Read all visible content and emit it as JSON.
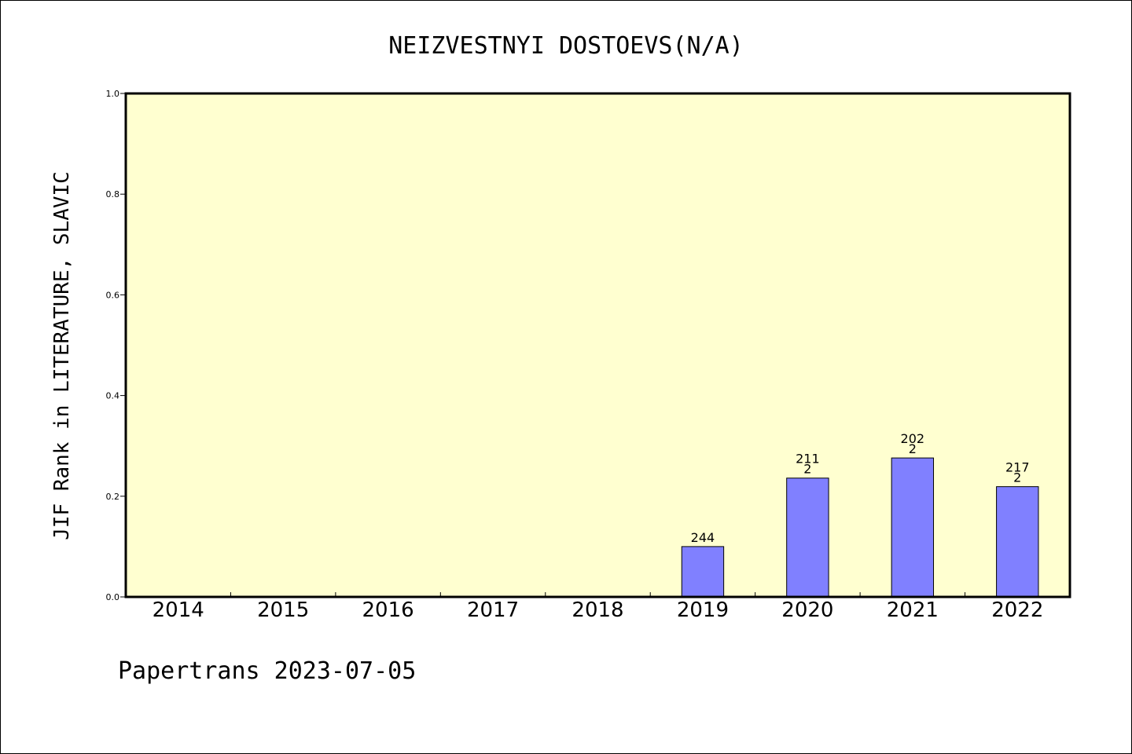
{
  "chart_data": {
    "type": "bar",
    "title": "NEIZVESTNYI DOSTOEVS(N/A)",
    "ylabel": "JIF Rank in LITERATURE, SLAVIC",
    "xlabel": "",
    "categories": [
      "2014",
      "2015",
      "2016",
      "2017",
      "2018",
      "2019",
      "2020",
      "2021",
      "2022"
    ],
    "values": [
      null,
      null,
      null,
      null,
      null,
      0.1,
      0.236,
      0.276,
      0.219
    ],
    "bar_labels": [
      [],
      [],
      [],
      [],
      [],
      [
        "244"
      ],
      [
        "211",
        "2"
      ],
      [
        "202",
        "2"
      ],
      [
        "217",
        "2"
      ]
    ],
    "ylim": [
      0,
      1.0
    ],
    "yticks": [
      "0.0",
      "0.2",
      "0.4",
      "0.6",
      "0.8",
      "1.0"
    ],
    "grid": false,
    "legend": "none",
    "colors": {
      "plot_background": "#ffffd0",
      "bar_fill": "#8080ff",
      "bar_stroke": "#000000"
    }
  },
  "footer": "Papertrans 2023-07-05"
}
